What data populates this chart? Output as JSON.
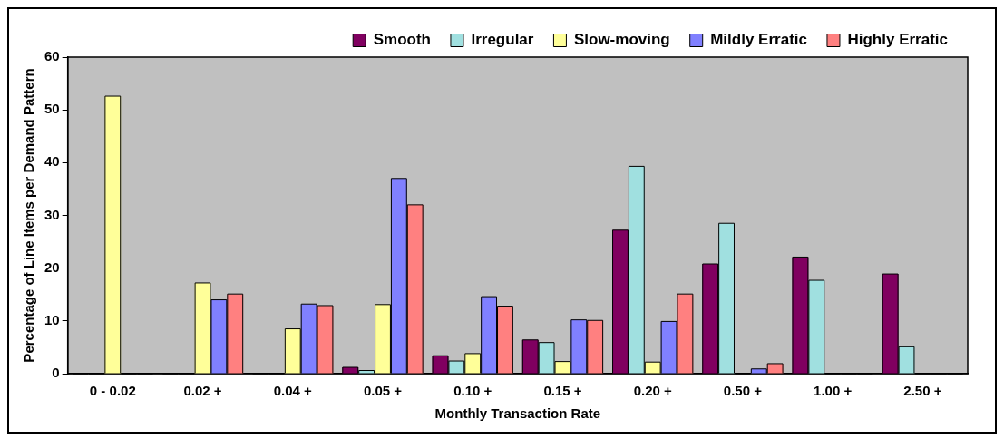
{
  "chart_data": {
    "type": "bar",
    "xlabel": "Monthly Transaction Rate",
    "ylabel": "Percentage of Line Items per Demand Pattern",
    "categories": [
      "0 - 0.02",
      "0.02 +",
      "0.04 +",
      "0.05 +",
      "0.10 +",
      "0.15 +",
      "0.20 +",
      "0.50 +",
      "1.00 +",
      "2.50 +"
    ],
    "series": [
      {
        "name": "Smooth",
        "color": "#800060",
        "values": [
          0,
          0,
          0,
          1.2,
          3.4,
          6.4,
          27.2,
          20.8,
          22.1,
          18.9
        ]
      },
      {
        "name": "Irregular",
        "color": "#a0e0e0",
        "values": [
          0,
          0,
          0,
          0.6,
          2.4,
          5.9,
          39.3,
          28.5,
          17.7,
          5.1
        ]
      },
      {
        "name": "Slow-moving",
        "color": "#ffff99",
        "values": [
          52.6,
          17.2,
          8.5,
          13.1,
          3.8,
          2.3,
          2.2,
          0,
          0,
          0
        ]
      },
      {
        "name": "Mildly Erratic",
        "color": "#8080ff",
        "values": [
          0,
          14,
          13.2,
          37,
          14.6,
          10.2,
          9.9,
          0.9,
          0,
          0
        ]
      },
      {
        "name": "Highly Erratic",
        "color": "#ff8080",
        "values": [
          0,
          15.1,
          12.9,
          32,
          12.8,
          10.1,
          15.1,
          1.9,
          0,
          0
        ]
      }
    ],
    "ylim": [
      0,
      60
    ],
    "yticks": [
      0,
      10,
      20,
      30,
      40,
      50,
      60
    ],
    "grid": false,
    "legend": "top"
  }
}
